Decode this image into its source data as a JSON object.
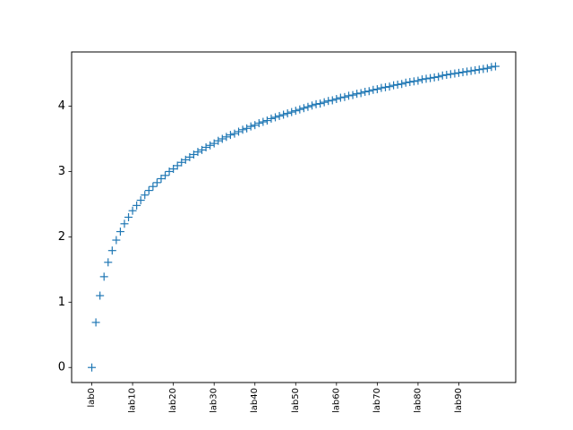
{
  "chart_data": {
    "type": "scatter",
    "title": "",
    "xlabel": "",
    "ylabel": "",
    "marker": "+",
    "grid": false,
    "color": "#1f77b4",
    "xlim": [
      -4.95,
      103.95
    ],
    "ylim": [
      -0.23,
      4.83
    ],
    "yticks": [
      0,
      1,
      2,
      3,
      4
    ],
    "xtick_positions": [
      0,
      10,
      20,
      30,
      40,
      50,
      60,
      70,
      80,
      90
    ],
    "xtick_labels": [
      "lab0",
      "lab10",
      "lab20",
      "lab30",
      "lab40",
      "lab50",
      "lab60",
      "lab70",
      "lab80",
      "lab90"
    ],
    "x": [
      0,
      1,
      2,
      3,
      4,
      5,
      6,
      7,
      8,
      9,
      10,
      11,
      12,
      13,
      14,
      15,
      16,
      17,
      18,
      19,
      20,
      21,
      22,
      23,
      24,
      25,
      26,
      27,
      28,
      29,
      30,
      31,
      32,
      33,
      34,
      35,
      36,
      37,
      38,
      39,
      40,
      41,
      42,
      43,
      44,
      45,
      46,
      47,
      48,
      49,
      50,
      51,
      52,
      53,
      54,
      55,
      56,
      57,
      58,
      59,
      60,
      61,
      62,
      63,
      64,
      65,
      66,
      67,
      68,
      69,
      70,
      71,
      72,
      73,
      74,
      75,
      76,
      77,
      78,
      79,
      80,
      81,
      82,
      83,
      84,
      85,
      86,
      87,
      88,
      89,
      90,
      91,
      92,
      93,
      94,
      95,
      96,
      97,
      98,
      99
    ],
    "y": [
      0.0,
      0.69,
      1.1,
      1.39,
      1.61,
      1.79,
      1.95,
      2.08,
      2.2,
      2.3,
      2.4,
      2.48,
      2.56,
      2.64,
      2.71,
      2.77,
      2.83,
      2.89,
      2.94,
      3.0,
      3.04,
      3.09,
      3.14,
      3.18,
      3.22,
      3.26,
      3.3,
      3.33,
      3.37,
      3.4,
      3.43,
      3.47,
      3.5,
      3.53,
      3.56,
      3.58,
      3.61,
      3.64,
      3.66,
      3.69,
      3.71,
      3.74,
      3.76,
      3.78,
      3.81,
      3.83,
      3.85,
      3.87,
      3.89,
      3.91,
      3.93,
      3.95,
      3.97,
      3.99,
      4.01,
      4.03,
      4.04,
      4.06,
      4.08,
      4.09,
      4.11,
      4.13,
      4.14,
      4.16,
      4.17,
      4.19,
      4.2,
      4.22,
      4.23,
      4.25,
      4.26,
      4.28,
      4.29,
      4.3,
      4.32,
      4.33,
      4.34,
      4.36,
      4.37,
      4.38,
      4.39,
      4.41,
      4.42,
      4.43,
      4.44,
      4.45,
      4.47,
      4.48,
      4.49,
      4.5,
      4.51,
      4.52,
      4.53,
      4.54,
      4.55,
      4.56,
      4.57,
      4.58,
      4.6,
      4.61
    ]
  }
}
